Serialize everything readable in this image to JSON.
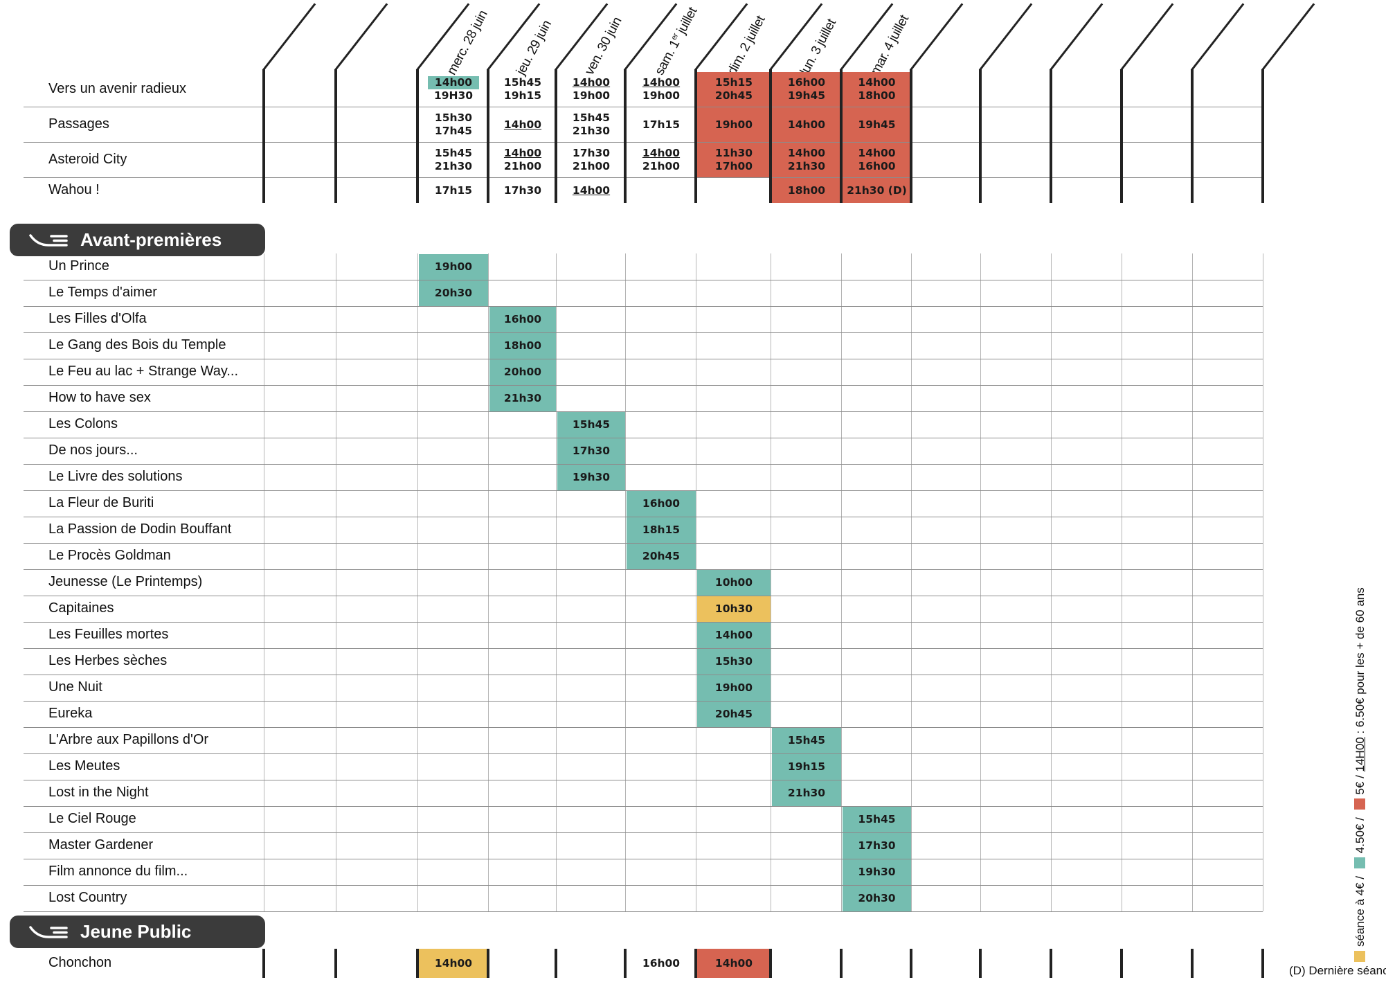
{
  "colors": {
    "teal": "#75bdb0",
    "red": "#d66451",
    "yellow": "#ecc15d",
    "pill": "#3b3b3b",
    "rule": "#8c8c8c"
  },
  "dates": [
    "merc. 28 juin",
    "jeu. 29 juin",
    "ven. 30 juin",
    "sam. 1er juillet",
    "dim. 2 juillet",
    "lun. 3 juillet",
    "mar. 4 juillet"
  ],
  "sections": [
    {
      "rows": [
        {
          "title": "Vers un avenir radieux",
          "cells": [
            [
              {
                "t": "14h00",
                "hl": true
              },
              {
                "t": "19H30"
              }
            ],
            [
              {
                "t": "15h45"
              },
              {
                "t": "19h15"
              }
            ],
            [
              {
                "t": "14h00",
                "u": true
              },
              {
                "t": "19h00"
              }
            ],
            [
              {
                "t": "14h00",
                "u": true
              },
              {
                "t": "19h00"
              }
            ],
            [
              {
                "t": "15h15"
              },
              {
                "t": "20h45"
              }
            ],
            [
              {
                "t": "16h00"
              },
              {
                "t": "19h45"
              }
            ],
            [
              {
                "t": "14h00"
              },
              {
                "t": "18h00"
              }
            ]
          ],
          "bg": [
            "",
            "",
            "",
            "",
            "red",
            "red",
            "red"
          ]
        },
        {
          "title": "Passages",
          "cells": [
            [
              {
                "t": "15h30"
              },
              {
                "t": "17h45"
              }
            ],
            [
              {
                "t": "14h00",
                "u": true
              }
            ],
            [
              {
                "t": "15h45"
              },
              {
                "t": "21h30"
              }
            ],
            [
              {
                "t": "17h15"
              }
            ],
            [
              {
                "t": "19h00"
              }
            ],
            [
              {
                "t": "14h00"
              }
            ],
            [
              {
                "t": "19h45"
              }
            ]
          ],
          "bg": [
            "",
            "",
            "",
            "",
            "red",
            "red",
            "red"
          ]
        },
        {
          "title": "Asteroid City",
          "cells": [
            [
              {
                "t": "15h45"
              },
              {
                "t": "21h30"
              }
            ],
            [
              {
                "t": "14h00",
                "u": true
              },
              {
                "t": "21h00"
              }
            ],
            [
              {
                "t": "17h30"
              },
              {
                "t": "21h00"
              }
            ],
            [
              {
                "t": "14h00",
                "u": true
              },
              {
                "t": "21h00"
              }
            ],
            [
              {
                "t": "11h30"
              },
              {
                "t": "17h00"
              }
            ],
            [
              {
                "t": "14h00"
              },
              {
                "t": "21h30"
              }
            ],
            [
              {
                "t": "14h00"
              },
              {
                "t": "16h00"
              }
            ]
          ],
          "bg": [
            "",
            "",
            "",
            "",
            "red",
            "red",
            "red"
          ]
        },
        {
          "title": "Wahou !",
          "cells": [
            [
              {
                "t": "17h15"
              }
            ],
            [
              {
                "t": "17h30"
              }
            ],
            [
              {
                "t": "14h00",
                "u": true
              }
            ],
            [],
            [],
            [
              {
                "t": "18h00"
              }
            ],
            [
              {
                "t": "21h30 (D)"
              }
            ]
          ],
          "bg": [
            "",
            "",
            "",
            "",
            "",
            "red",
            "red"
          ]
        }
      ]
    },
    {
      "label": "Avant-premières",
      "rows": [
        {
          "title": "Un Prince",
          "col": 0,
          "time": "19h00",
          "bg": "teal"
        },
        {
          "title": "Le Temps d'aimer",
          "col": 0,
          "time": "20h30",
          "bg": "teal"
        },
        {
          "title": "Les Filles d'Olfa",
          "col": 1,
          "time": "16h00",
          "bg": "teal"
        },
        {
          "title": "Le Gang des Bois du Temple",
          "col": 1,
          "time": "18h00",
          "bg": "teal"
        },
        {
          "title": "Le Feu au lac + Strange Way...",
          "col": 1,
          "time": "20h00",
          "bg": "teal"
        },
        {
          "title": "How to have sex",
          "col": 1,
          "time": "21h30",
          "bg": "teal"
        },
        {
          "title": "Les Colons",
          "col": 2,
          "time": "15h45",
          "bg": "teal"
        },
        {
          "title": "De nos jours...",
          "col": 2,
          "time": "17h30",
          "bg": "teal"
        },
        {
          "title": "Le Livre des solutions",
          "col": 2,
          "time": "19h30",
          "bg": "teal"
        },
        {
          "title": "La Fleur de Buriti",
          "col": 3,
          "time": "16h00",
          "bg": "teal"
        },
        {
          "title": "La Passion de Dodin Bouffant",
          "col": 3,
          "time": "18h15",
          "bg": "teal"
        },
        {
          "title": "Le Procès Goldman",
          "col": 3,
          "time": "20h45",
          "bg": "teal"
        },
        {
          "title": "Jeunesse (Le Printemps)",
          "col": 4,
          "time": "10h00",
          "bg": "teal"
        },
        {
          "title": "Capitaines",
          "col": 4,
          "time": "10h30",
          "bg": "yellow"
        },
        {
          "title": "Les Feuilles mortes",
          "col": 4,
          "time": "14h00",
          "bg": "teal"
        },
        {
          "title": "Les Herbes sèches",
          "col": 4,
          "time": "15h30",
          "bg": "teal"
        },
        {
          "title": "Une Nuit",
          "col": 4,
          "time": "19h00",
          "bg": "teal"
        },
        {
          "title": "Eureka",
          "col": 4,
          "time": "20h45",
          "bg": "teal"
        },
        {
          "title": "L'Arbre aux Papillons d'Or",
          "col": 5,
          "time": "15h45",
          "bg": "teal"
        },
        {
          "title": "Les Meutes",
          "col": 5,
          "time": "19h15",
          "bg": "teal"
        },
        {
          "title": "Lost in the Night",
          "col": 5,
          "time": "21h30",
          "bg": "teal"
        },
        {
          "title": "Le Ciel Rouge",
          "col": 6,
          "time": "15h45",
          "bg": "teal"
        },
        {
          "title": "Master Gardener",
          "col": 6,
          "time": "17h30",
          "bg": "teal"
        },
        {
          "title": "Film annonce du film...",
          "col": 6,
          "time": "19h30",
          "bg": "teal"
        },
        {
          "title": "Lost Country",
          "col": 6,
          "time": "20h30",
          "bg": "teal"
        }
      ]
    },
    {
      "label": "Jeune Public",
      "rows": [
        {
          "title": "Chonchon",
          "cells": [
            [
              {
                "t": "14h00"
              }
            ],
            [],
            [],
            [
              {
                "t": "16h00"
              }
            ],
            [
              {
                "t": "14h00"
              }
            ],
            [],
            []
          ],
          "bg": [
            "yellow",
            "",
            "",
            "",
            "red",
            "",
            ""
          ]
        }
      ]
    }
  ],
  "legend": {
    "yellow_text": "séance à 4€ /",
    "teal_text": "4.50€ /",
    "red_text_a": "5€ /",
    "red_text_u": "14H00",
    "red_text_b": ": 6.50€ pour les + de 60 ans"
  },
  "note": "(D) Dernière séance"
}
